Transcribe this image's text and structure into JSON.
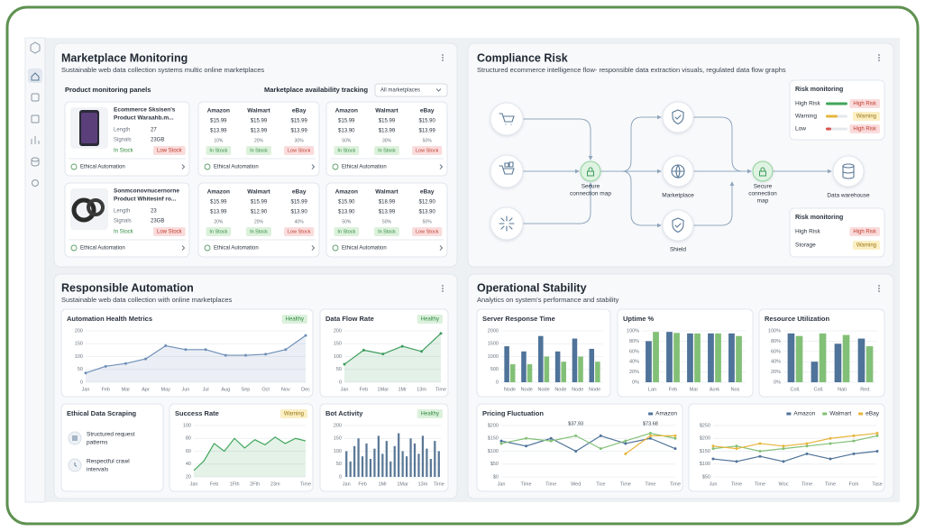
{
  "marketplace": {
    "title": "Marketplace Monitoring",
    "subtitle": "Sustainable web data collection systems multic online marketplaces",
    "panels_label": "Product monitoring panels",
    "tracking_label": "Marketplace availability tracking",
    "filter": "All marketplaces",
    "products": [
      {
        "name": [
          "Ecommerce Sksisen's",
          "Product Waraahb.m..."
        ],
        "specs": [
          [
            "Length",
            "27"
          ],
          [
            "Signals",
            "23GB"
          ]
        ],
        "status": "In Stock",
        "risk": "Low Stock",
        "footer": "Ethical Automation",
        "tables": [
          {
            "headers": [
              "Amazon",
              "Walmart",
              "eBay"
            ],
            "rows": [
              [
                "$15.99",
                "$15.99",
                "$15.99"
              ],
              [
                "$13.99",
                "$13.99",
                "$13.99"
              ],
              [
                "10%",
                "20%",
                "30%"
              ]
            ],
            "status": [
              "In Stock",
              "In Stock",
              "Low Stock"
            ],
            "footer": "Ethical Automation"
          },
          {
            "headers": [
              "Amazon",
              "Walmart",
              "eBay"
            ],
            "rows": [
              [
                "$15.99",
                "$15.99",
                "$15.90"
              ],
              [
                "$13.90",
                "$13.99",
                "$13.99"
              ],
              [
                "50%",
                "30%",
                "50%"
              ]
            ],
            "status": [
              "In Stock",
              "In Stock",
              "Low Stock"
            ],
            "footer": "Ethical Automation"
          }
        ]
      },
      {
        "name": [
          "Sonmconovnucernorne",
          "Product Whitesinf ro..."
        ],
        "specs": [
          [
            "Length",
            "23"
          ],
          [
            "Signals",
            "23GB"
          ]
        ],
        "status": "In Stock",
        "risk": "Low Stock",
        "footer": "Ethical Automation",
        "tables": [
          {
            "headers": [
              "Amazon",
              "Walmart",
              "eBay"
            ],
            "rows": [
              [
                "$15.99",
                "$15.99",
                "$15.99"
              ],
              [
                "$13.99",
                "$12.90",
                "$13.90"
              ],
              [
                "20%",
                "20%",
                "40%"
              ]
            ],
            "status": [
              "In Stock",
              "In Stock",
              "Low Stock"
            ],
            "footer": "Ethical Automation"
          },
          {
            "headers": [
              "Amazon",
              "Walmart",
              "eBay"
            ],
            "rows": [
              [
                "$15.90",
                "$18.99",
                "$12.90"
              ],
              [
                "$13.90",
                "$13.99",
                "$13.90"
              ],
              [
                "50%",
                "50%",
                "50%"
              ]
            ],
            "status": [
              "In Stock",
              "In Stock",
              "Low Stock"
            ],
            "footer": "Ethical Automation"
          }
        ]
      }
    ]
  },
  "compliance": {
    "title": "Compliance Risk",
    "subtitle": "Structured ecommerce intelligence flow- responsible data extraction visuals, regulated data flow graphs",
    "nodes": [
      {
        "label": [
          "Secure",
          "connection map"
        ]
      },
      {
        "label": [
          "Marketplace"
        ]
      },
      {
        "label": [
          "Shield"
        ]
      },
      {
        "label": [
          "Secure",
          "connection",
          "map"
        ]
      },
      {
        "label": [
          "Data warehouse"
        ]
      }
    ],
    "risk_boxes": [
      {
        "title": "Risk monitoring",
        "rows": [
          [
            "High Risk",
            "High Risk"
          ],
          [
            "Warning",
            "Warning"
          ],
          [
            "Low",
            "High Risk"
          ]
        ]
      },
      {
        "title": "Risk monitoring",
        "rows": [
          [
            "High Risk",
            "High Risk"
          ],
          [
            "Storage",
            "Warning"
          ]
        ]
      }
    ]
  },
  "responsible": {
    "title": "Responsible Automation",
    "subtitle": "Sustainable web data collection with online marketplaces",
    "charts": [
      {
        "type": "line",
        "title": "Automation Health Metrics",
        "badge": "Healthy",
        "area": true,
        "dots": true,
        "categories": [
          "Jan",
          "Feb",
          "Mar",
          "Apr",
          "May",
          "Jun",
          "Jul",
          "Aug",
          "Sep",
          "Oct",
          "Nov",
          "Dec"
        ],
        "values": [
          36,
          62,
          73,
          91,
          142,
          127,
          127,
          105,
          105,
          109,
          127,
          182
        ],
        "color": "#6f8fb8",
        "ylim": [
          0,
          200
        ],
        "yticks": [
          0,
          50,
          100,
          150,
          200
        ]
      },
      {
        "type": "line",
        "title": "Data Flow Rate",
        "badge": "Healthy",
        "area": true,
        "dots": true,
        "categories": [
          "Jan",
          "Feb",
          "1Mar",
          "1Mr",
          "13m",
          "Time"
        ],
        "values": [
          70,
          125,
          110,
          140,
          120,
          190
        ],
        "color": "#3f9d5f",
        "ylim": [
          0,
          200
        ],
        "yticks": [
          0,
          50,
          100,
          150,
          200
        ]
      },
      {
        "type": "line",
        "title": "Success Rate",
        "badge": "Warning",
        "area": true,
        "categories": [
          "Jan",
          null,
          "Feb",
          null,
          "1Fth",
          null,
          "2Fth",
          null,
          "23m",
          null,
          null,
          "Time"
        ],
        "values": [
          30,
          45,
          72,
          60,
          80,
          65,
          78,
          70,
          82,
          72,
          80,
          76
        ],
        "color": "#3fa55a",
        "ylim": [
          20,
          100
        ],
        "yticks": [
          20,
          40,
          60,
          80,
          100
        ]
      },
      {
        "type": "bar",
        "title": "Bot Activity",
        "badge": "Healthy",
        "categories": [
          "Jan",
          null,
          null,
          null,
          "Feb",
          null,
          null,
          null,
          null,
          "1Mr",
          null,
          null,
          null,
          null,
          "1Mar",
          null,
          null,
          null,
          null,
          "13m",
          null,
          null,
          null,
          "Time"
        ],
        "values": [
          100,
          60,
          120,
          150,
          80,
          130,
          70,
          110,
          160,
          90,
          140,
          60,
          120,
          170,
          100,
          80,
          150,
          130,
          90,
          160,
          110,
          70,
          140,
          100
        ],
        "color": "#5a7896",
        "ylim": [
          0,
          200
        ],
        "yticks": [
          0,
          50,
          100,
          150,
          200
        ]
      }
    ],
    "scraping": {
      "title": "Ethical Data Scraping",
      "items": [
        [
          "Structured request",
          "patterns"
        ],
        [
          "Respectful crawl",
          "intervals"
        ]
      ]
    }
  },
  "operational": {
    "title": "Operational Stability",
    "subtitle": "Analytics on system's performance and stability",
    "charts": [
      {
        "type": "bar",
        "title": "Server Response Time",
        "categories": [
          "Node",
          "Node",
          "Node",
          "Node",
          "Node",
          "Node"
        ],
        "series": [
          {
            "color": "#4f7399",
            "values": [
              1400,
              1200,
              1800,
              1200,
              1700,
              1300
            ]
          },
          {
            "color": "#83c077",
            "values": [
              700,
              700,
              1000,
              800,
              1000,
              800
            ]
          }
        ],
        "ylim": [
          0,
          2000
        ],
        "yticks": [
          0,
          500,
          1000,
          1500,
          2000
        ]
      },
      {
        "type": "bar",
        "title": "Uptime %",
        "categories": [
          "Lan",
          "Feb",
          "Mar",
          "Aork",
          "Nos"
        ],
        "series": [
          {
            "color": "#4f7399",
            "values": [
              80,
              98,
              95,
              95,
              95
            ]
          },
          {
            "color": "#83c077",
            "values": [
              98,
              96,
              95,
              95,
              90
            ]
          }
        ],
        "ylim": [
          0,
          100
        ],
        "yticks": [
          {
            "value": 0,
            "label": "0%"
          },
          {
            "value": 20,
            "label": "20%"
          },
          {
            "value": 40,
            "label": "40%"
          },
          {
            "value": 60,
            "label": "60%"
          },
          {
            "value": 80,
            "label": "80%"
          },
          {
            "value": 100,
            "label": "100%"
          }
        ]
      },
      {
        "type": "bar",
        "title": "Resource Utilization",
        "categories": [
          "Coll.",
          "Coll.",
          "Nati",
          "Red."
        ],
        "series": [
          {
            "color": "#4f7399",
            "values": [
              95,
              40,
              75,
              85
            ]
          },
          {
            "color": "#83c077",
            "values": [
              90,
              95,
              92,
              70
            ]
          }
        ],
        "ylim": [
          0,
          100
        ],
        "yticks": [
          {
            "value": 0,
            "label": "0%"
          },
          {
            "value": 20,
            "label": "20%"
          },
          {
            "value": 40,
            "label": "40%"
          },
          {
            "value": 60,
            "label": "60%"
          },
          {
            "value": 80,
            "label": "80%"
          },
          {
            "value": 100,
            "label": "100%"
          }
        ]
      },
      {
        "type": "line",
        "title": "Pricing Fluctuation",
        "dots": true,
        "categories": [
          "Jan",
          "Time",
          "Time",
          "Wed",
          "Tice",
          "Time",
          "Time",
          "Time"
        ],
        "series": [
          {
            "name": "Amazon",
            "color": "#4f7399",
            "values": [
              140,
              120,
              150,
              100,
              160,
              130,
              150,
              110
            ]
          },
          {
            "color": "#83c077",
            "values": [
              130,
              150,
              140,
              160,
              110,
              140,
              170,
              150
            ]
          },
          {
            "color": "#e6b53c",
            "values": [
              null,
              null,
              null,
              null,
              null,
              90,
              160,
              160
            ]
          }
        ],
        "annotations": [
          "$37.93",
          "$73.68"
        ],
        "ylim": [
          0,
          200
        ],
        "yticks": [
          {
            "value": 0,
            "label": "$0"
          },
          {
            "value": 50,
            "label": "$50"
          },
          {
            "value": 100,
            "label": "$100"
          },
          {
            "value": 150,
            "label": "$150"
          },
          {
            "value": 200,
            "label": "$200"
          }
        ]
      },
      {
        "type": "line",
        "dots": true,
        "categories": [
          "Jun",
          "Time",
          "Time",
          "Woc",
          "Time",
          "Time",
          "Fom",
          "Tase"
        ],
        "series": [
          {
            "name": "Amazon",
            "color": "#4f7399",
            "values": [
              120,
              110,
              130,
              110,
              140,
              120,
              140,
              150
            ]
          },
          {
            "name": "Walmart",
            "color": "#83c077",
            "values": [
              160,
              170,
              150,
              160,
              170,
              180,
              190,
              210
            ]
          },
          {
            "name": "eBay",
            "color": "#e6b53c",
            "values": [
              170,
              160,
              180,
              170,
              180,
              200,
              210,
              220
            ]
          }
        ],
        "ylim": [
          50,
          250
        ],
        "yticks": [
          {
            "value": 50,
            "label": "$50"
          },
          {
            "value": 100,
            "label": "$100"
          },
          {
            "value": 150,
            "label": "$150"
          },
          {
            "value": 200,
            "label": "$200"
          },
          {
            "value": 250,
            "label": "$250"
          }
        ]
      }
    ]
  }
}
